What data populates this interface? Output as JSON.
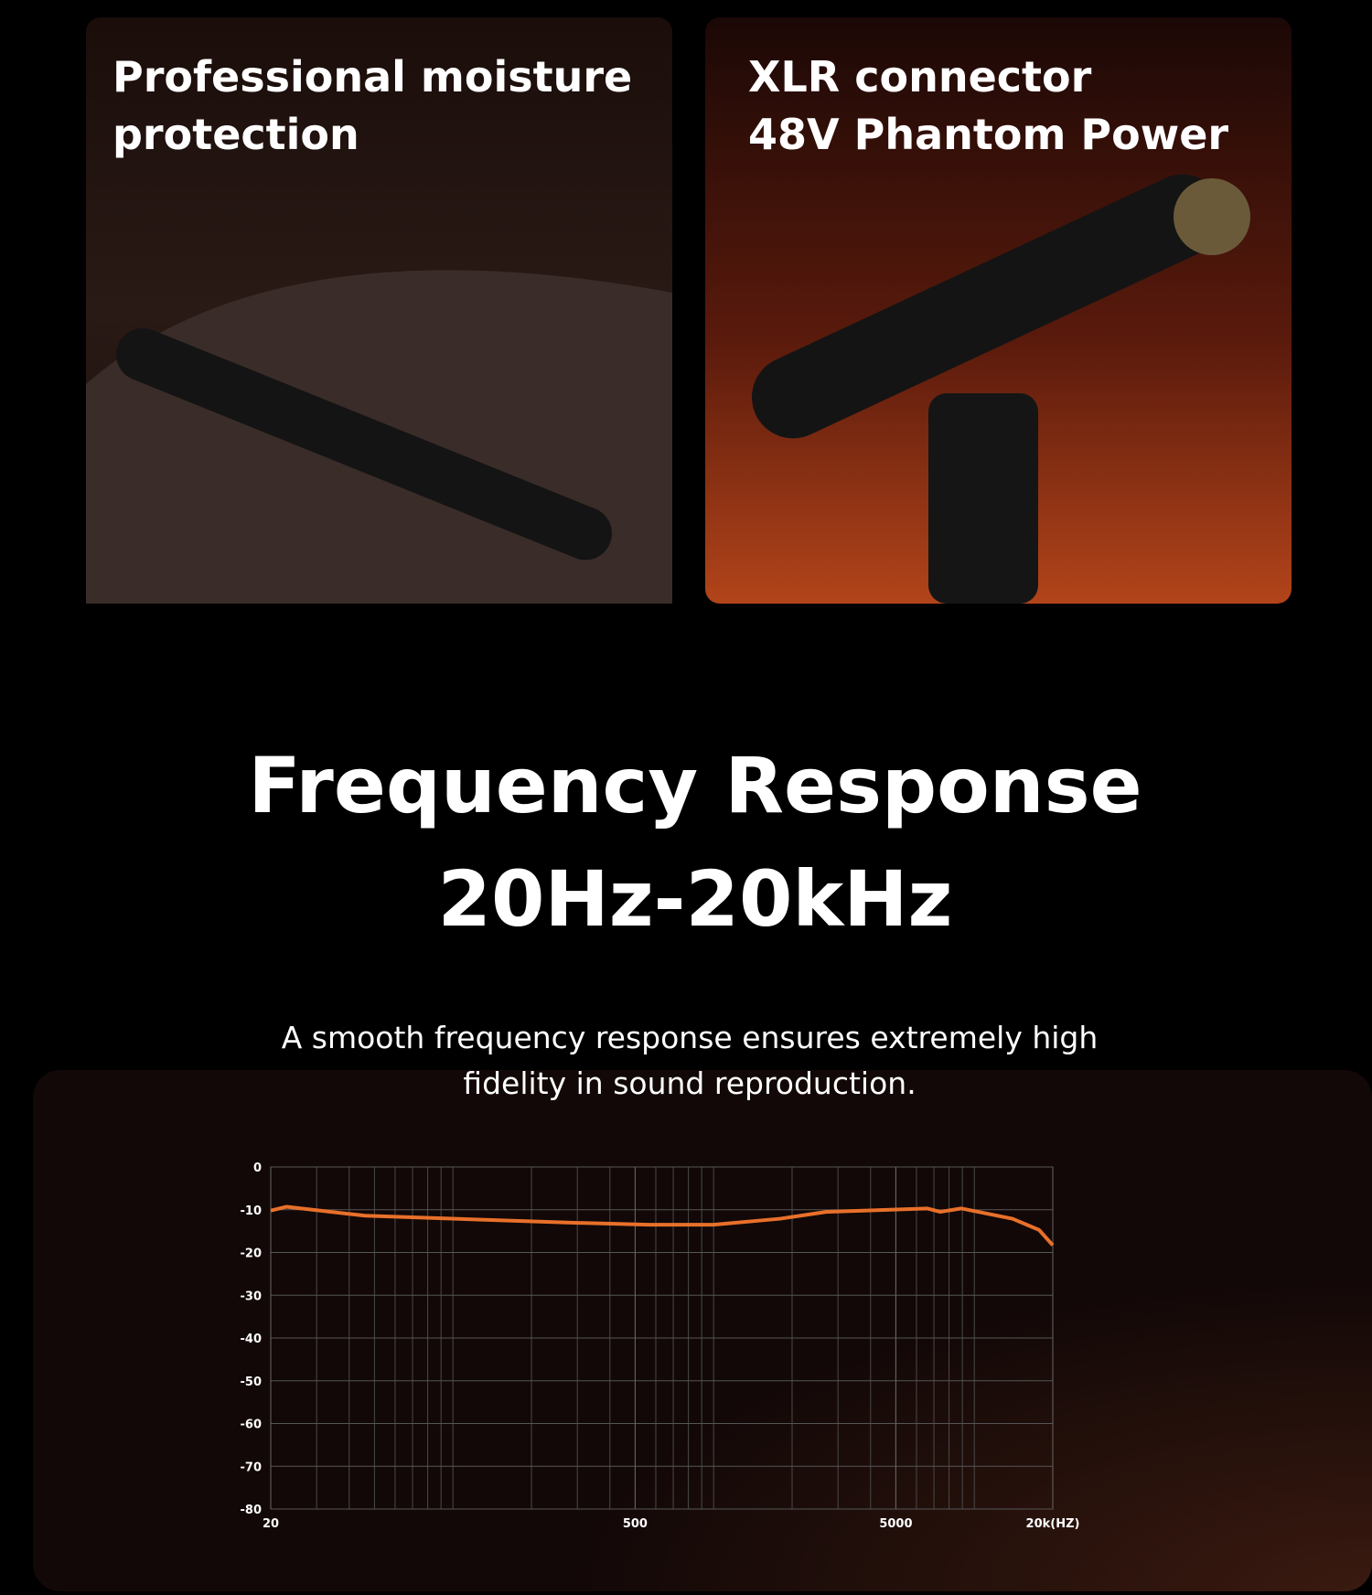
{
  "cards": [
    {
      "title_lines": [
        "Professional moisture",
        "protection"
      ]
    },
    {
      "title_lines": [
        "XLR connector",
        "48V Phantom Power"
      ]
    }
  ],
  "heading": {
    "title": "Frequency Response",
    "subtitle": "20Hz-20kHz"
  },
  "description_lines": [
    "A smooth frequency response ensures extremely high",
    "fidelity in sound reproduction."
  ],
  "chart_data": {
    "type": "line",
    "xscale": "log",
    "grid": true,
    "x": [
      20,
      23,
      46,
      274,
      562,
      1000,
      1800,
      2700,
      6600,
      7400,
      8900,
      14000,
      17700,
      20000
    ],
    "series": [
      {
        "name": "Frequency response",
        "color": "#e8702a",
        "values": [
          -10.2,
          -9.3,
          -11.4,
          -13,
          -13.5,
          -13.5,
          -12.1,
          -10.5,
          -9.7,
          -10.5,
          -9.7,
          -12.1,
          -14.7,
          -18.3
        ]
      }
    ],
    "xlim": [
      20,
      20000
    ],
    "xticks": [
      20,
      500,
      5000,
      {
        "value": 20000,
        "label": "20k(HZ)"
      }
    ],
    "ylim": [
      -80,
      0
    ],
    "yticks": [
      0,
      -10,
      -20,
      -30,
      -40,
      -50,
      -60,
      -70,
      -80
    ]
  }
}
